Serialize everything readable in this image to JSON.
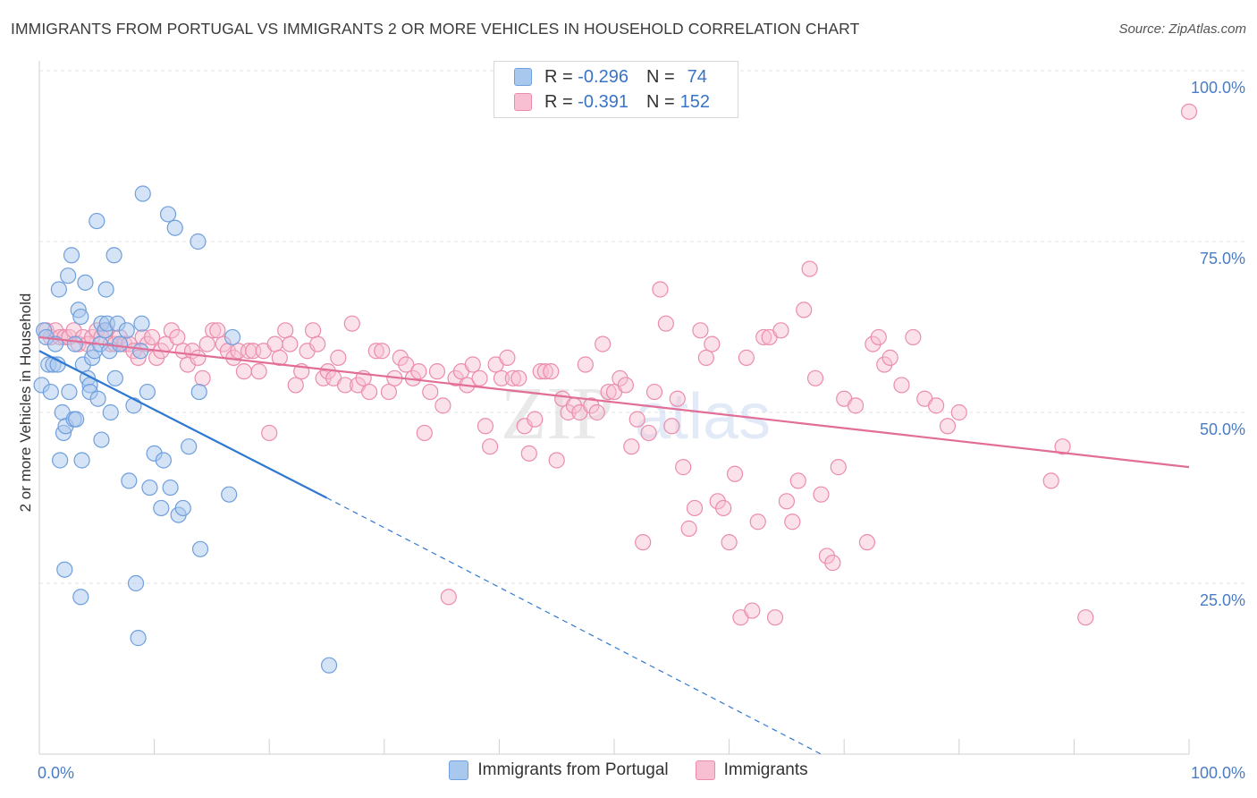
{
  "title": "IMMIGRANTS FROM PORTUGAL VS IMMIGRANTS 2 OR MORE VEHICLES IN HOUSEHOLD CORRELATION CHART",
  "source": "Source: ZipAtlas.com",
  "watermark": {
    "zip": "ZIP",
    "atlas": "atlas"
  },
  "legend_top": {
    "rows": [
      {
        "r_label": "R =",
        "r_value": "-0.296",
        "n_label": "N =",
        "n_value": "74"
      },
      {
        "r_label": "R =",
        "r_value": "-0.391",
        "n_label": "N =",
        "n_value": "152"
      }
    ]
  },
  "legend_bottom": [
    "Immigrants from Portugal",
    "Immigrants"
  ],
  "colors": {
    "blue_fill": "#a9c8ee",
    "blue_stroke": "#6f9fdc",
    "blue_line": "#2f78d2",
    "pink_fill": "#f7bfd1",
    "pink_stroke": "#eb8cac",
    "pink_line": "#e26d97",
    "axis_text": "#4a7cc6",
    "grid": "#e3e3e3"
  },
  "chart_data": {
    "type": "scatter",
    "title": "IMMIGRANTS FROM PORTUGAL VS IMMIGRANTS 2 OR MORE VEHICLES IN HOUSEHOLD CORRELATION CHART",
    "xlabel": "",
    "ylabel": "2 or more Vehicles in Household",
    "xlim": [
      0,
      100
    ],
    "ylim": [
      0,
      100
    ],
    "x_tick_labels": [
      "0.0%",
      "100.0%"
    ],
    "y_ticks": [
      25,
      50,
      75,
      100
    ],
    "y_tick_labels": [
      "25.0%",
      "50.0%",
      "75.0%",
      "100.0%"
    ],
    "grid": "horizontal dashed",
    "legend": "bottom-center",
    "series": [
      {
        "name": "Immigrants from Portugal",
        "r": -0.296,
        "n": 74,
        "trend": {
          "x0": 0,
          "y0": 59,
          "x1": 25,
          "y1": 37.5,
          "dashed_to_x": 68,
          "dashed_to_y": 0
        },
        "points": [
          [
            0.2,
            54
          ],
          [
            0.4,
            62
          ],
          [
            0.6,
            61
          ],
          [
            0.8,
            57
          ],
          [
            1.0,
            53
          ],
          [
            1.2,
            57
          ],
          [
            1.4,
            60
          ],
          [
            1.6,
            57
          ],
          [
            1.7,
            68
          ],
          [
            1.8,
            43
          ],
          [
            2.0,
            50
          ],
          [
            2.1,
            47
          ],
          [
            2.2,
            27
          ],
          [
            2.3,
            48
          ],
          [
            2.5,
            70
          ],
          [
            2.6,
            53
          ],
          [
            2.8,
            73
          ],
          [
            3.0,
            49
          ],
          [
            3.1,
            60
          ],
          [
            3.2,
            49
          ],
          [
            3.4,
            65
          ],
          [
            3.6,
            64
          ],
          [
            3.6,
            23
          ],
          [
            3.7,
            43
          ],
          [
            3.8,
            57
          ],
          [
            4.0,
            69
          ],
          [
            4.2,
            55
          ],
          [
            4.4,
            54
          ],
          [
            4.4,
            53
          ],
          [
            4.6,
            58
          ],
          [
            4.8,
            59
          ],
          [
            5.0,
            78
          ],
          [
            5.1,
            52
          ],
          [
            5.3,
            60
          ],
          [
            5.4,
            63
          ],
          [
            5.4,
            46
          ],
          [
            5.7,
            62
          ],
          [
            5.8,
            68
          ],
          [
            5.9,
            63
          ],
          [
            6.1,
            59
          ],
          [
            6.2,
            50
          ],
          [
            6.5,
            73
          ],
          [
            6.6,
            55
          ],
          [
            6.8,
            63
          ],
          [
            7.0,
            60
          ],
          [
            7.6,
            62
          ],
          [
            7.8,
            40
          ],
          [
            8.2,
            51
          ],
          [
            8.4,
            25
          ],
          [
            8.6,
            17
          ],
          [
            8.8,
            59
          ],
          [
            8.9,
            63
          ],
          [
            9.0,
            82
          ],
          [
            9.4,
            53
          ],
          [
            9.6,
            39
          ],
          [
            10.0,
            44
          ],
          [
            10.6,
            36
          ],
          [
            10.8,
            43
          ],
          [
            11.2,
            79
          ],
          [
            11.4,
            39
          ],
          [
            11.8,
            77
          ],
          [
            12.1,
            35
          ],
          [
            12.5,
            36
          ],
          [
            13.0,
            45
          ],
          [
            13.8,
            75
          ],
          [
            13.9,
            53
          ],
          [
            14.0,
            30
          ],
          [
            16.5,
            38
          ],
          [
            16.8,
            61
          ],
          [
            25.2,
            13
          ]
        ]
      },
      {
        "name": "Immigrants",
        "r": -0.391,
        "n": 152,
        "trend": {
          "x0": 0,
          "y0": 61,
          "x1": 100,
          "y1": 42
        },
        "points": [
          [
            0.6,
            62
          ],
          [
            1.0,
            61
          ],
          [
            1.4,
            62
          ],
          [
            1.8,
            61
          ],
          [
            2.2,
            61
          ],
          [
            2.6,
            61
          ],
          [
            3.0,
            62
          ],
          [
            3.4,
            60
          ],
          [
            3.8,
            61
          ],
          [
            4.2,
            60
          ],
          [
            4.6,
            61
          ],
          [
            5.0,
            62
          ],
          [
            5.4,
            61
          ],
          [
            5.8,
            62
          ],
          [
            6.2,
            60
          ],
          [
            6.6,
            60
          ],
          [
            7.0,
            61
          ],
          [
            7.4,
            60
          ],
          [
            7.8,
            60
          ],
          [
            8.2,
            59
          ],
          [
            8.6,
            58
          ],
          [
            9.0,
            61
          ],
          [
            9.4,
            60
          ],
          [
            9.8,
            61
          ],
          [
            10.2,
            58
          ],
          [
            10.6,
            59
          ],
          [
            11.0,
            60
          ],
          [
            11.5,
            62
          ],
          [
            12.0,
            61
          ],
          [
            12.5,
            59
          ],
          [
            12.9,
            57
          ],
          [
            13.3,
            59
          ],
          [
            13.8,
            58
          ],
          [
            14.2,
            55
          ],
          [
            14.6,
            60
          ],
          [
            15.1,
            62
          ],
          [
            15.5,
            62
          ],
          [
            16.0,
            60
          ],
          [
            16.4,
            59
          ],
          [
            16.9,
            58
          ],
          [
            17.3,
            59
          ],
          [
            17.8,
            56
          ],
          [
            18.2,
            59
          ],
          [
            18.6,
            59
          ],
          [
            19.1,
            56
          ],
          [
            19.5,
            59
          ],
          [
            20.0,
            47
          ],
          [
            20.5,
            60
          ],
          [
            20.9,
            58
          ],
          [
            21.4,
            62
          ],
          [
            21.8,
            60
          ],
          [
            22.3,
            54
          ],
          [
            22.8,
            56
          ],
          [
            23.3,
            59
          ],
          [
            23.8,
            62
          ],
          [
            24.2,
            60
          ],
          [
            24.7,
            55
          ],
          [
            25.1,
            56
          ],
          [
            25.6,
            55
          ],
          [
            26.0,
            58
          ],
          [
            26.6,
            54
          ],
          [
            27.2,
            63
          ],
          [
            27.7,
            54
          ],
          [
            28.2,
            55
          ],
          [
            28.7,
            53
          ],
          [
            29.3,
            59
          ],
          [
            29.8,
            59
          ],
          [
            30.4,
            53
          ],
          [
            30.9,
            55
          ],
          [
            31.4,
            58
          ],
          [
            31.9,
            57
          ],
          [
            32.5,
            55
          ],
          [
            33.0,
            56
          ],
          [
            33.5,
            47
          ],
          [
            34.0,
            53
          ],
          [
            34.6,
            56
          ],
          [
            35.1,
            51
          ],
          [
            35.6,
            23
          ],
          [
            36.2,
            55
          ],
          [
            36.7,
            56
          ],
          [
            37.2,
            54
          ],
          [
            37.7,
            57
          ],
          [
            38.3,
            55
          ],
          [
            38.8,
            48
          ],
          [
            39.2,
            45
          ],
          [
            39.7,
            57
          ],
          [
            40.2,
            55
          ],
          [
            40.7,
            58
          ],
          [
            41.2,
            55
          ],
          [
            41.7,
            55
          ],
          [
            42.2,
            48
          ],
          [
            42.6,
            44
          ],
          [
            43.1,
            49
          ],
          [
            43.6,
            56
          ],
          [
            44.0,
            56
          ],
          [
            44.5,
            56
          ],
          [
            45.0,
            43
          ],
          [
            45.5,
            52
          ],
          [
            46.0,
            50
          ],
          [
            46.5,
            51
          ],
          [
            47.0,
            50
          ],
          [
            47.5,
            57
          ],
          [
            48.0,
            51
          ],
          [
            48.5,
            50
          ],
          [
            49.0,
            60
          ],
          [
            49.5,
            53
          ],
          [
            50.0,
            53
          ],
          [
            50.5,
            55
          ],
          [
            51.0,
            54
          ],
          [
            51.5,
            45
          ],
          [
            52.0,
            49
          ],
          [
            52.5,
            31
          ],
          [
            53.0,
            47
          ],
          [
            53.5,
            53
          ],
          [
            54.0,
            68
          ],
          [
            54.5,
            63
          ],
          [
            55.0,
            48
          ],
          [
            55.5,
            52
          ],
          [
            56.0,
            42
          ],
          [
            56.5,
            33
          ],
          [
            57.0,
            36
          ],
          [
            57.5,
            62
          ],
          [
            58.0,
            58
          ],
          [
            58.5,
            60
          ],
          [
            59.0,
            37
          ],
          [
            59.5,
            36
          ],
          [
            60.0,
            31
          ],
          [
            60.5,
            41
          ],
          [
            61.0,
            20
          ],
          [
            61.5,
            58
          ],
          [
            62.0,
            21
          ],
          [
            62.5,
            34
          ],
          [
            63.0,
            61
          ],
          [
            63.5,
            61
          ],
          [
            64.0,
            20
          ],
          [
            64.5,
            62
          ],
          [
            65.0,
            37
          ],
          [
            65.5,
            34
          ],
          [
            66.0,
            40
          ],
          [
            66.5,
            65
          ],
          [
            67.0,
            71
          ],
          [
            67.5,
            55
          ],
          [
            68.0,
            38
          ],
          [
            68.5,
            29
          ],
          [
            69.0,
            28
          ],
          [
            69.5,
            42
          ],
          [
            70.0,
            52
          ],
          [
            71.0,
            51
          ],
          [
            72.0,
            31
          ],
          [
            72.5,
            60
          ],
          [
            73.0,
            61
          ],
          [
            73.5,
            57
          ],
          [
            74.0,
            58
          ],
          [
            75.0,
            54
          ],
          [
            76.0,
            61
          ],
          [
            77.0,
            52
          ],
          [
            78.0,
            51
          ],
          [
            79.0,
            48
          ],
          [
            80.0,
            50
          ],
          [
            88.0,
            40
          ],
          [
            89.0,
            45
          ],
          [
            91.0,
            20
          ],
          [
            100.0,
            94
          ]
        ]
      }
    ]
  }
}
